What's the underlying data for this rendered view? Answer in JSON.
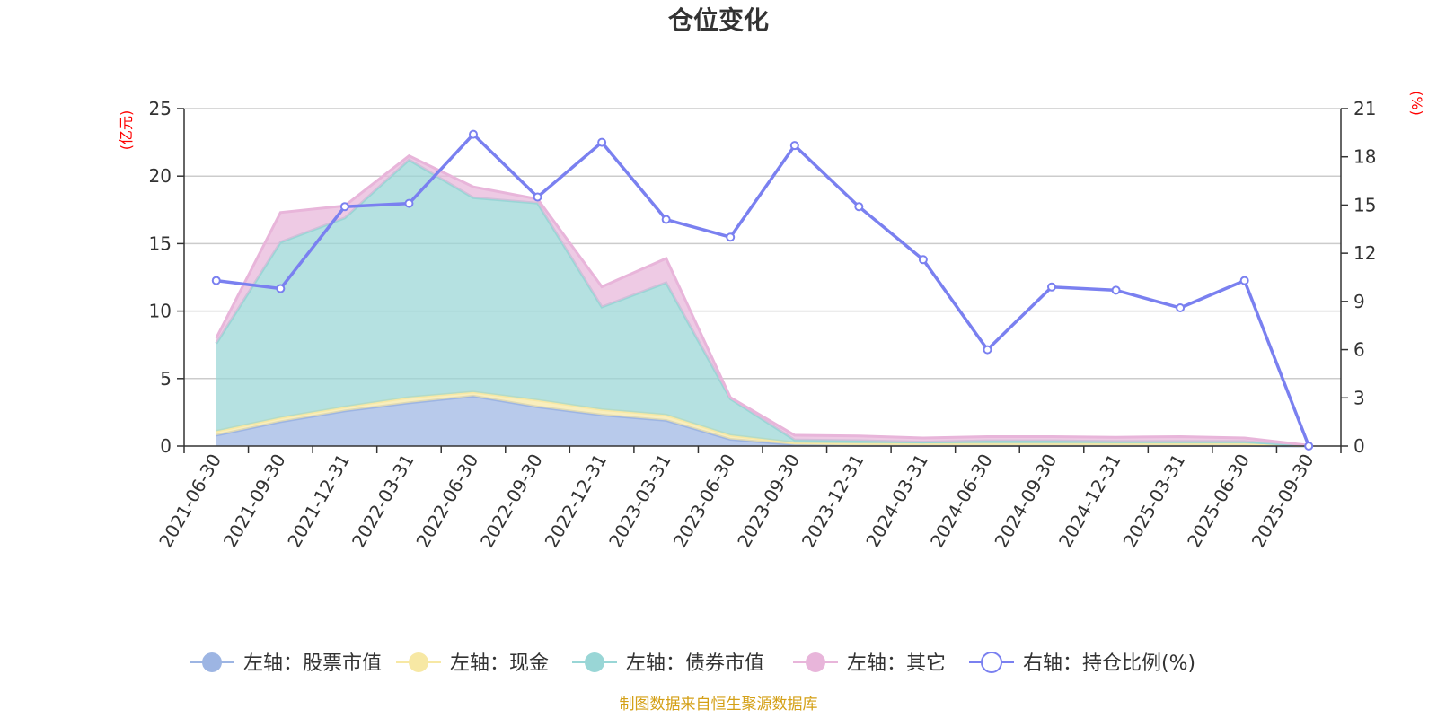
{
  "chart_data": {
    "type": "area",
    "title": "仓位变化",
    "left_axis_unit": "(亿元)",
    "right_axis_unit": "(%)",
    "ylim_left": [
      0,
      25
    ],
    "yticks_left": [
      "0",
      "5",
      "10",
      "15",
      "20",
      "25"
    ],
    "ylim_right": [
      0,
      21
    ],
    "yticks_right": [
      "0",
      "3",
      "6",
      "9",
      "12",
      "15",
      "18",
      "21"
    ],
    "categories": [
      "2021-06-30",
      "2021-09-30",
      "2021-12-31",
      "2022-03-31",
      "2022-06-30",
      "2022-09-30",
      "2022-12-31",
      "2023-03-31",
      "2023-06-30",
      "2023-09-30",
      "2023-12-31",
      "2024-03-31",
      "2024-06-30",
      "2024-09-30",
      "2024-12-31",
      "2025-03-31",
      "2025-06-30",
      "2025-09-30"
    ],
    "stacked_series": [
      {
        "name": "左轴：股票市值",
        "color": "#9db5e3",
        "values": [
          0.8,
          1.8,
          2.6,
          3.2,
          3.7,
          2.9,
          2.3,
          1.9,
          0.5,
          0.1,
          0.05,
          0.04,
          0.04,
          0.04,
          0.04,
          0.04,
          0.04,
          0.0
        ]
      },
      {
        "name": "左轴：现金",
        "color": "#f7e8a4",
        "values": [
          0.3,
          0.3,
          0.3,
          0.4,
          0.3,
          0.5,
          0.4,
          0.4,
          0.3,
          0.15,
          0.15,
          0.15,
          0.15,
          0.15,
          0.15,
          0.15,
          0.15,
          0.0
        ]
      },
      {
        "name": "左轴：债券市值",
        "color": "#99d6d6",
        "values": [
          6.5,
          13.0,
          14.0,
          17.6,
          14.4,
          14.6,
          7.6,
          9.8,
          2.7,
          0.2,
          0.2,
          0.1,
          0.2,
          0.2,
          0.15,
          0.15,
          0.15,
          0.0
        ]
      },
      {
        "name": "左轴：其它",
        "color": "#e8b5da",
        "values": [
          0.4,
          2.2,
          0.9,
          0.3,
          0.8,
          0.3,
          1.5,
          1.8,
          0.1,
          0.35,
          0.35,
          0.31,
          0.31,
          0.31,
          0.31,
          0.36,
          0.26,
          0.05
        ]
      }
    ],
    "line_series": {
      "name": "右轴：持仓比例(%)",
      "color": "#7a80f0",
      "values": [
        10.3,
        9.8,
        14.9,
        15.1,
        19.4,
        15.5,
        18.9,
        14.1,
        13.0,
        18.7,
        14.9,
        11.6,
        6.0,
        9.9,
        9.7,
        8.6,
        10.3,
        0.0
      ]
    },
    "legend_position": "bottom",
    "source_note": "制图数据来自恒生聚源数据库"
  }
}
